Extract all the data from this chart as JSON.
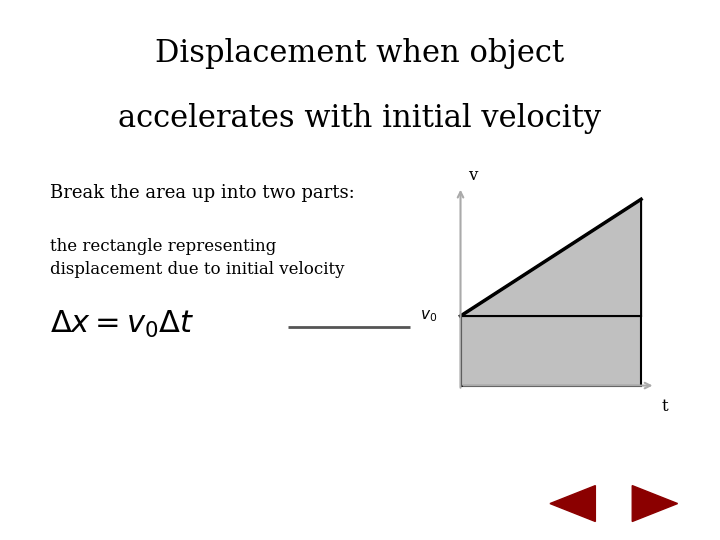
{
  "title_line1": "Displacement when object",
  "title_line2": "accelerates with initial velocity",
  "subtitle": "Break the area up into two parts:",
  "label_text_line1": "the rectangle representing",
  "label_text_line2": "displacement due to initial velocity",
  "formula": "$\\Delta x = v_0 \\Delta t$",
  "bg_color": "#ffffff",
  "title_fontsize": 22,
  "subtitle_fontsize": 13,
  "label_fontsize": 12,
  "formula_fontsize": 22,
  "arrow_color": "#555555",
  "shape_fill_color": "#c0c0c0",
  "shape_edge_color": "#000000",
  "v_label": "v",
  "t_label": "t",
  "v0_label": "$v_0$",
  "nav_button_color": "#ff0000",
  "nav_button_dark": "#8b0000"
}
